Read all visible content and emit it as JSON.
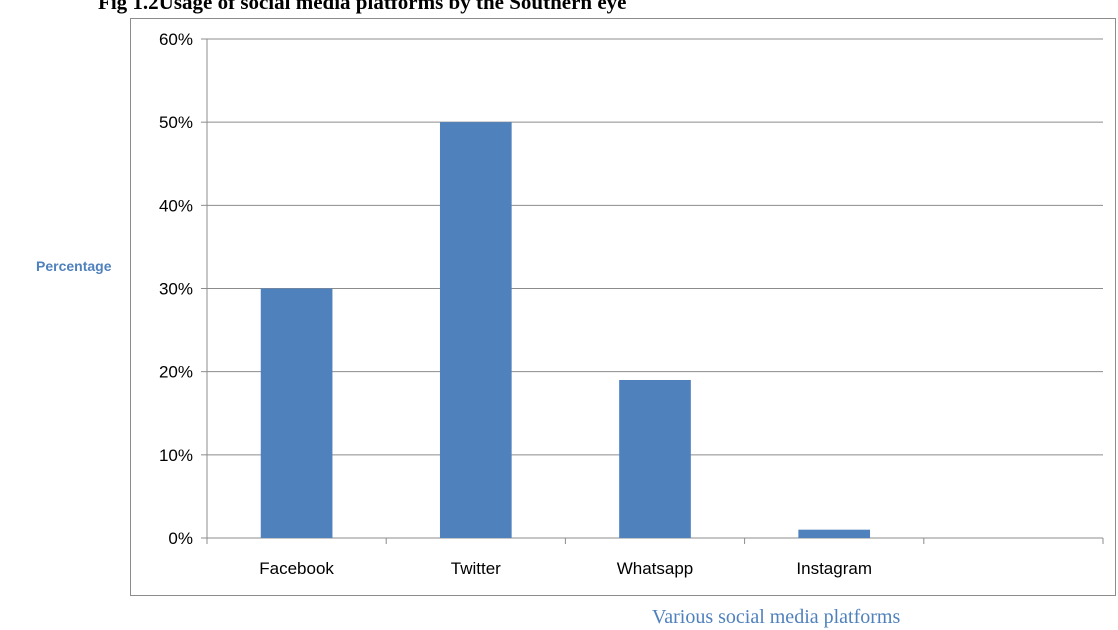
{
  "figure_title": "Fig 1.2Usage of social media platforms by the Southern eye",
  "chart_data": {
    "type": "bar",
    "categories": [
      "Facebook",
      "Twitter",
      "Whatsapp",
      "Instagram",
      ""
    ],
    "values": [
      30,
      50,
      19,
      1,
      null
    ],
    "title": "Fig 1.2Usage of social media platforms by the Southern eye",
    "xlabel": "Various social media platforms",
    "ylabel": "Percentage",
    "ylim": [
      0,
      60
    ],
    "yticks": [
      "0%",
      "10%",
      "20%",
      "30%",
      "40%",
      "50%",
      "60%"
    ],
    "ytick_values": [
      0,
      10,
      20,
      30,
      40,
      50,
      60
    ],
    "grid": true,
    "legend": "none",
    "bar_color": "#4f81bd"
  }
}
